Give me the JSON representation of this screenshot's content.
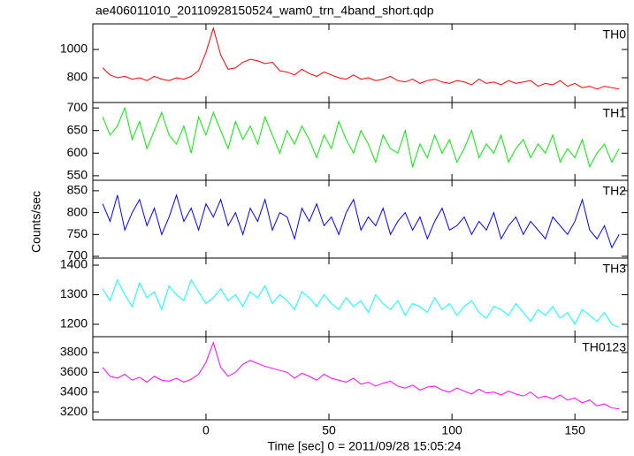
{
  "chart_data": [
    {
      "type": "line",
      "title": "ae406011010_20110928150524_wam0_trn_4band_short.qdp",
      "label": "TH0",
      "color": "#ff0000",
      "xlim": [
        -46,
        171.5
      ],
      "xticks": [
        0,
        50,
        100,
        150
      ],
      "ylim": [
        625,
        1181
      ],
      "yticks": [
        800,
        1000
      ],
      "x": [
        -42,
        -39,
        -36,
        -33,
        -30,
        -27,
        -24,
        -21,
        -18,
        -15,
        -12,
        -9,
        -6,
        -3,
        0,
        3,
        6,
        9,
        12,
        15,
        18,
        21,
        24,
        27,
        30,
        33,
        36,
        39,
        42,
        45,
        48,
        51,
        54,
        57,
        60,
        63,
        66,
        69,
        72,
        75,
        78,
        81,
        84,
        87,
        90,
        93,
        96,
        99,
        102,
        105,
        108,
        111,
        114,
        117,
        120,
        123,
        126,
        129,
        132,
        135,
        138,
        141,
        144,
        147,
        150,
        153,
        156,
        159,
        162,
        165,
        168
      ],
      "values": [
        870,
        820,
        800,
        810,
        790,
        800,
        780,
        810,
        790,
        780,
        800,
        790,
        810,
        850,
        980,
        1150,
        960,
        860,
        870,
        910,
        930,
        920,
        900,
        910,
        850,
        840,
        820,
        860,
        830,
        810,
        840,
        820,
        800,
        790,
        820,
        790,
        800,
        780,
        790,
        810,
        780,
        770,
        790,
        760,
        780,
        790,
        770,
        760,
        780,
        770,
        750,
        790,
        760,
        770,
        750,
        780,
        760,
        770,
        780,
        740,
        760,
        750,
        780,
        740,
        760,
        730,
        740,
        720,
        740,
        730,
        720
      ]
    },
    {
      "type": "line",
      "label": "TH1",
      "color": "#00ee00",
      "xlim": [
        -46,
        171.5
      ],
      "xticks": [
        0,
        50,
        100,
        150
      ],
      "ylim": [
        540,
        712
      ],
      "yticks": [
        550,
        600,
        650,
        700
      ],
      "x": [
        -42,
        -39,
        -36,
        -33,
        -30,
        -27,
        -24,
        -21,
        -18,
        -15,
        -12,
        -9,
        -6,
        -3,
        0,
        3,
        6,
        9,
        12,
        15,
        18,
        21,
        24,
        27,
        30,
        33,
        36,
        39,
        42,
        45,
        48,
        51,
        54,
        57,
        60,
        63,
        66,
        69,
        72,
        75,
        78,
        81,
        84,
        87,
        90,
        93,
        96,
        99,
        102,
        105,
        108,
        111,
        114,
        117,
        120,
        123,
        126,
        129,
        132,
        135,
        138,
        141,
        144,
        147,
        150,
        153,
        156,
        159,
        162,
        165,
        168
      ],
      "values": [
        680,
        640,
        660,
        700,
        630,
        670,
        610,
        650,
        690,
        640,
        620,
        660,
        600,
        680,
        640,
        690,
        650,
        610,
        670,
        630,
        660,
        620,
        680,
        640,
        600,
        650,
        620,
        660,
        630,
        590,
        640,
        610,
        670,
        630,
        600,
        650,
        620,
        580,
        640,
        610,
        600,
        650,
        570,
        620,
        590,
        640,
        600,
        630,
        580,
        610,
        650,
        590,
        620,
        600,
        640,
        580,
        610,
        630,
        590,
        620,
        600,
        640,
        580,
        610,
        590,
        630,
        570,
        600,
        620,
        580,
        610
      ]
    },
    {
      "type": "line",
      "label": "TH2",
      "ylabel": "Counts/sec",
      "color": "#0000ff",
      "xlim": [
        -46,
        171.5
      ],
      "xticks": [
        0,
        50,
        100,
        150
      ],
      "ylim": [
        696,
        874
      ],
      "yticks": [
        700,
        750,
        800,
        850
      ],
      "x": [
        -42,
        -39,
        -36,
        -33,
        -30,
        -27,
        -24,
        -21,
        -18,
        -15,
        -12,
        -9,
        -6,
        -3,
        0,
        3,
        6,
        9,
        12,
        15,
        18,
        21,
        24,
        27,
        30,
        33,
        36,
        39,
        42,
        45,
        48,
        51,
        54,
        57,
        60,
        63,
        66,
        69,
        72,
        75,
        78,
        81,
        84,
        87,
        90,
        93,
        96,
        99,
        102,
        105,
        108,
        111,
        114,
        117,
        120,
        123,
        126,
        129,
        132,
        135,
        138,
        141,
        144,
        147,
        150,
        153,
        156,
        159,
        162,
        165,
        168
      ],
      "values": [
        820,
        780,
        840,
        760,
        800,
        830,
        770,
        810,
        750,
        790,
        840,
        780,
        810,
        760,
        820,
        790,
        830,
        770,
        800,
        750,
        810,
        780,
        830,
        760,
        800,
        790,
        740,
        810,
        780,
        820,
        770,
        790,
        750,
        800,
        830,
        760,
        790,
        770,
        810,
        750,
        780,
        800,
        760,
        790,
        740,
        780,
        810,
        760,
        770,
        790,
        750,
        780,
        760,
        800,
        740,
        770,
        790,
        750,
        780,
        760,
        740,
        790,
        770,
        750,
        780,
        830,
        760,
        740,
        770,
        720,
        750
      ]
    },
    {
      "type": "line",
      "label": "TH3",
      "color": "#00ffff",
      "xlim": [
        -46,
        171.5
      ],
      "xticks": [
        0,
        50,
        100,
        150
      ],
      "ylim": [
        1158,
        1424
      ],
      "yticks": [
        1200,
        1300,
        1400
      ],
      "x": [
        -42,
        -39,
        -36,
        -33,
        -30,
        -27,
        -24,
        -21,
        -18,
        -15,
        -12,
        -9,
        -6,
        -3,
        0,
        3,
        6,
        9,
        12,
        15,
        18,
        21,
        24,
        27,
        30,
        33,
        36,
        39,
        42,
        45,
        48,
        51,
        54,
        57,
        60,
        63,
        66,
        69,
        72,
        75,
        78,
        81,
        84,
        87,
        90,
        93,
        96,
        99,
        102,
        105,
        108,
        111,
        114,
        117,
        120,
        123,
        126,
        129,
        132,
        135,
        138,
        141,
        144,
        147,
        150,
        153,
        156,
        159,
        162,
        165,
        168
      ],
      "values": [
        1320,
        1280,
        1350,
        1300,
        1260,
        1340,
        1290,
        1310,
        1250,
        1330,
        1300,
        1280,
        1350,
        1310,
        1270,
        1290,
        1320,
        1280,
        1300,
        1260,
        1310,
        1290,
        1330,
        1270,
        1300,
        1280,
        1250,
        1310,
        1290,
        1260,
        1300,
        1270,
        1250,
        1290,
        1260,
        1280,
        1240,
        1300,
        1270,
        1250,
        1280,
        1230,
        1270,
        1260,
        1240,
        1290,
        1250,
        1270,
        1230,
        1260,
        1280,
        1240,
        1220,
        1260,
        1250,
        1230,
        1270,
        1240,
        1210,
        1250,
        1230,
        1260,
        1220,
        1240,
        1200,
        1250,
        1230,
        1210,
        1240,
        1200,
        1190
      ]
    },
    {
      "type": "line",
      "label": "TH0123",
      "xlabel": "Time [sec] 0 = 2011/09/28 15:05:24",
      "color": "#ff00ff",
      "xlim": [
        -46,
        171.5
      ],
      "xticks": [
        0,
        50,
        100,
        150
      ],
      "ylim": [
        3120,
        3960
      ],
      "yticks": [
        3200,
        3400,
        3600,
        3800
      ],
      "x": [
        -42,
        -39,
        -36,
        -33,
        -30,
        -27,
        -24,
        -21,
        -18,
        -15,
        -12,
        -9,
        -6,
        -3,
        0,
        3,
        6,
        9,
        12,
        15,
        18,
        21,
        24,
        27,
        30,
        33,
        36,
        39,
        42,
        45,
        48,
        51,
        54,
        57,
        60,
        63,
        66,
        69,
        72,
        75,
        78,
        81,
        84,
        87,
        90,
        93,
        96,
        99,
        102,
        105,
        108,
        111,
        114,
        117,
        120,
        123,
        126,
        129,
        132,
        135,
        138,
        141,
        144,
        147,
        150,
        153,
        156,
        159,
        162,
        165,
        168
      ],
      "values": [
        3650,
        3560,
        3540,
        3580,
        3520,
        3550,
        3500,
        3560,
        3520,
        3510,
        3540,
        3500,
        3530,
        3580,
        3700,
        3900,
        3650,
        3560,
        3600,
        3680,
        3720,
        3690,
        3660,
        3640,
        3620,
        3600,
        3540,
        3590,
        3560,
        3520,
        3580,
        3540,
        3520,
        3500,
        3540,
        3480,
        3500,
        3460,
        3490,
        3510,
        3460,
        3440,
        3470,
        3420,
        3450,
        3460,
        3420,
        3400,
        3440,
        3410,
        3380,
        3430,
        3390,
        3400,
        3370,
        3410,
        3380,
        3360,
        3400,
        3340,
        3360,
        3330,
        3370,
        3320,
        3340,
        3290,
        3320,
        3260,
        3280,
        3240,
        3230
      ]
    }
  ]
}
